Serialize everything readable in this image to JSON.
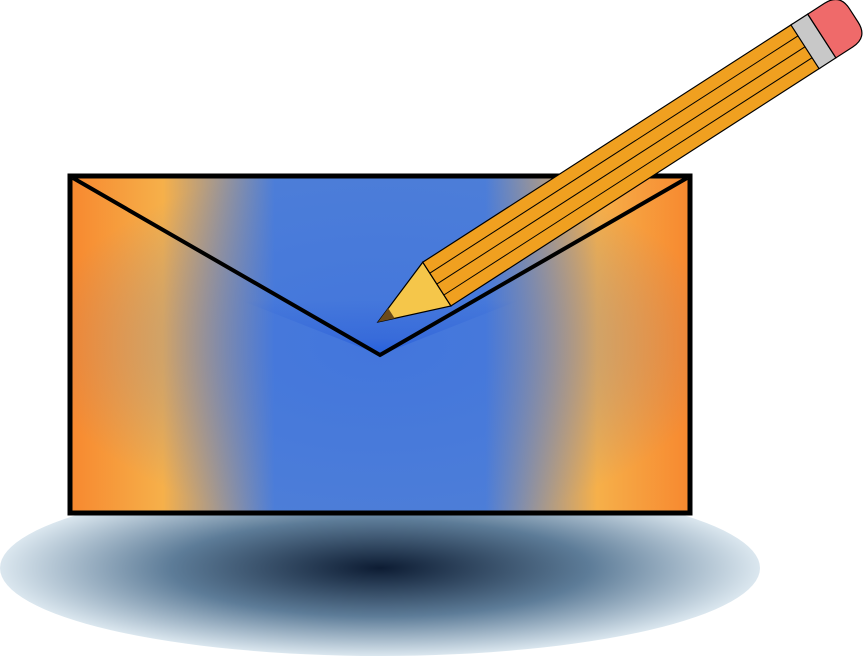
{
  "illustration": {
    "subject": "compose-mail-icon",
    "icons": [
      "envelope-icon",
      "pencil-icon",
      "shadow"
    ],
    "colors": {
      "envelope_orange": "#f7882f",
      "envelope_light_orange": "#f6b04a",
      "envelope_blue": "#4d7ed8",
      "envelope_deep_blue": "#1f5ee0",
      "outline": "#000000",
      "pencil_body": "#f0a020",
      "pencil_wood": "#f5c64a",
      "pencil_lead": "#6b4a1a",
      "pencil_ferrule": "#c8c8c8",
      "pencil_eraser": "#ef6a6a",
      "shadow_center": "#0d1c33",
      "shadow_edge": "#dbe7ef"
    }
  }
}
